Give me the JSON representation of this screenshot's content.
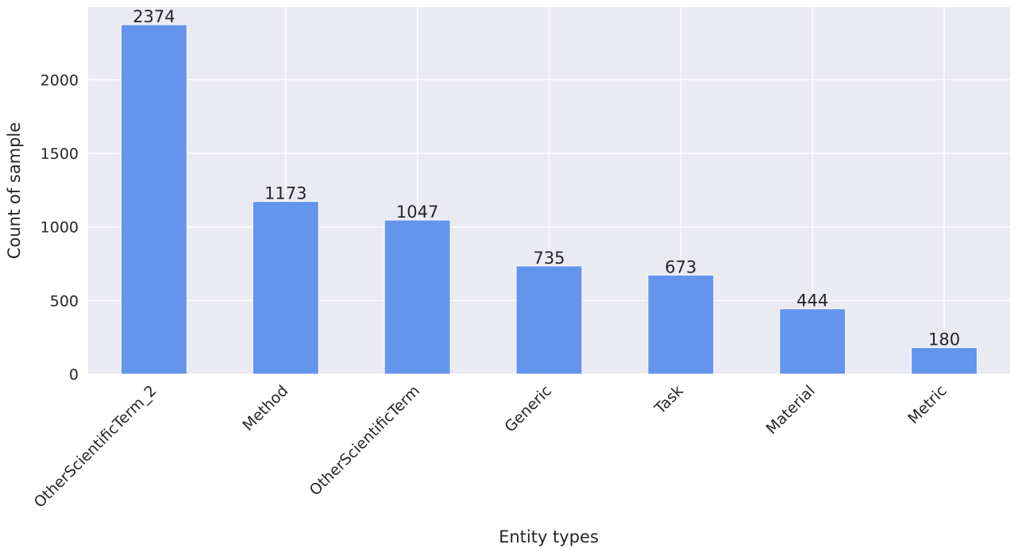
{
  "chart_data": {
    "type": "bar",
    "categories": [
      "OtherScientificTerm_2",
      "Method",
      "OtherScientificTerm",
      "Generic",
      "Task",
      "Material",
      "Metric"
    ],
    "values": [
      2374,
      1173,
      1047,
      735,
      673,
      444,
      180
    ],
    "xlabel": "Entity types",
    "ylabel": "Count of sample",
    "yticks": [
      0,
      500,
      1000,
      1500,
      2000
    ],
    "ylim": [
      0,
      2493
    ],
    "grid": true,
    "legend": "none",
    "colors": {
      "bar": "#6495ED",
      "background": "#EAEAF2",
      "grid": "#FFFFFF",
      "text": "#262626"
    }
  }
}
